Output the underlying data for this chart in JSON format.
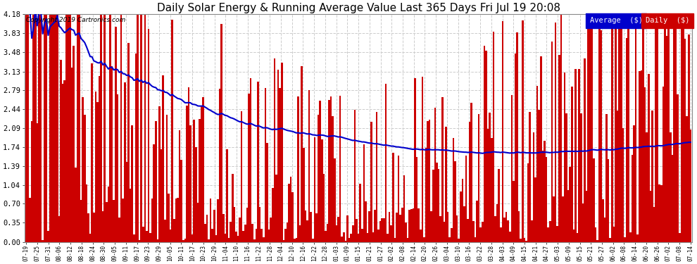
{
  "title": "Daily Solar Energy & Running Average Value Last 365 Days Fri Jul 19 20:08",
  "title_fontsize": 11,
  "copyright_text": "Copyright 2019 Cartronics.com",
  "legend_labels": [
    "Average  ($)",
    "Daily  ($)"
  ],
  "legend_colors": [
    "#0000cc",
    "#cc0000"
  ],
  "bar_color": "#cc0000",
  "avg_color": "#0000cc",
  "background_color": "#ffffff",
  "plot_bg_color": "#ffffff",
  "grid_color": "#cccccc",
  "ylim": [
    0.0,
    4.18
  ],
  "yticks": [
    0.0,
    0.35,
    0.7,
    1.04,
    1.39,
    1.74,
    2.09,
    2.44,
    2.79,
    3.13,
    3.48,
    3.83,
    4.18
  ],
  "n_days": 365,
  "x_tick_labels": [
    "07-19",
    "07-25",
    "07-31",
    "08-06",
    "08-12",
    "08-18",
    "08-24",
    "08-30",
    "09-05",
    "09-11",
    "09-17",
    "09-23",
    "09-29",
    "10-05",
    "10-11",
    "10-17",
    "10-23",
    "10-29",
    "11-04",
    "11-10",
    "11-16",
    "11-22",
    "11-28",
    "12-04",
    "12-10",
    "12-16",
    "12-22",
    "12-28",
    "01-03",
    "01-09",
    "01-15",
    "01-21",
    "01-27",
    "02-02",
    "02-08",
    "02-14",
    "02-20",
    "02-26",
    "03-04",
    "03-10",
    "03-16",
    "03-22",
    "03-28",
    "04-03",
    "04-09",
    "04-15",
    "04-21",
    "04-27",
    "05-03",
    "05-09",
    "05-15",
    "05-21",
    "05-27",
    "06-02",
    "06-08",
    "06-14",
    "06-20",
    "06-26",
    "07-02",
    "07-08",
    "07-14"
  ]
}
